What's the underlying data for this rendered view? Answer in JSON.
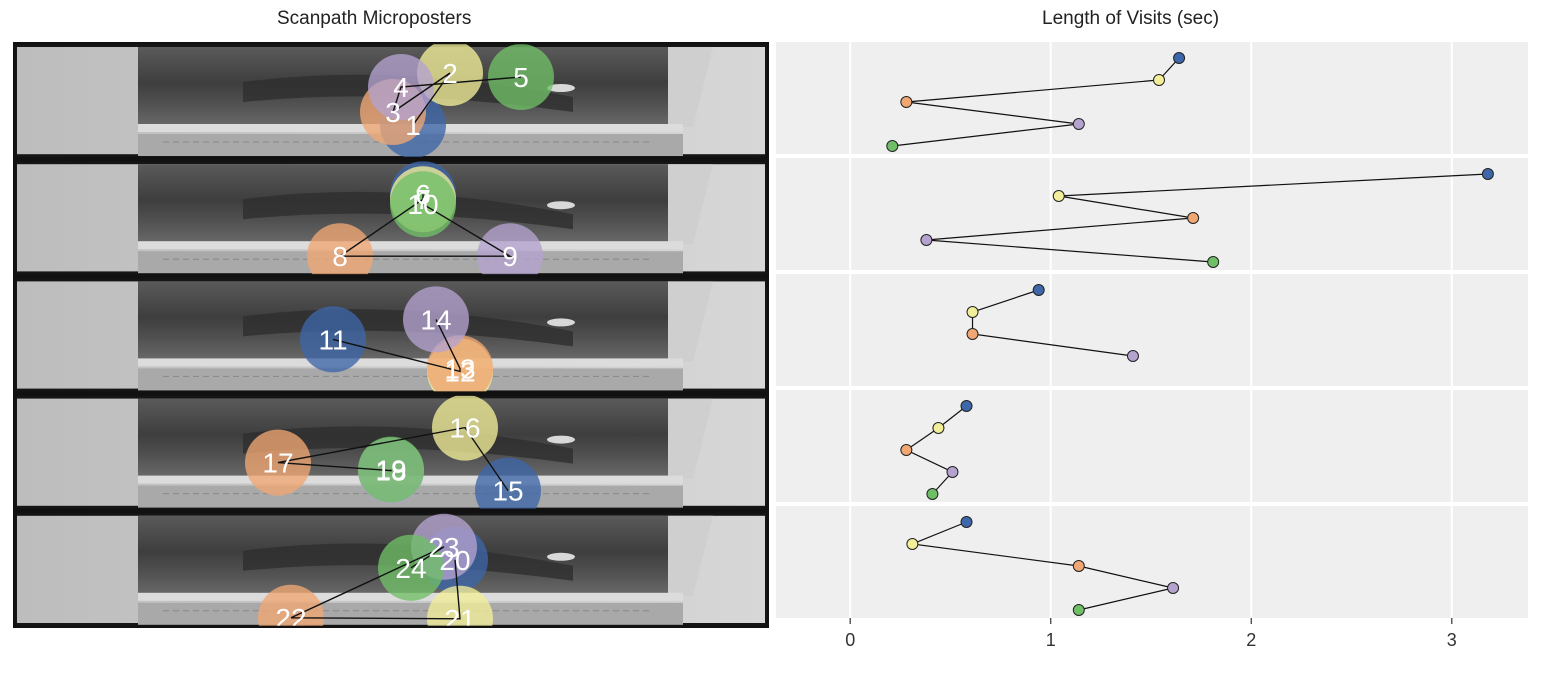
{
  "left_title": "Scanpath Microposters",
  "right_title": "Length of Visits (sec)",
  "colors": {
    "blue": "#3d67a8",
    "yellow": "#f2ee9a",
    "orange": "#f1a773",
    "purple": "#b5a3cf",
    "green": "#6fbf66",
    "panel_bg": "#efefef",
    "grid": "#ffffff"
  },
  "scanpaths": [
    {
      "fixations": [
        {
          "label": "1",
          "color": "blue"
        },
        {
          "label": "2",
          "color": "yellow"
        },
        {
          "label": "3",
          "color": "orange"
        },
        {
          "label": "4",
          "color": "purple"
        },
        {
          "label": "5",
          "color": "green"
        }
      ]
    },
    {
      "fixations": [
        {
          "label": "6",
          "color": "blue"
        },
        {
          "label": "7",
          "color": "yellow"
        },
        {
          "label": "8",
          "color": "orange"
        },
        {
          "label": "9",
          "color": "purple"
        },
        {
          "label": "10",
          "color": "green"
        }
      ]
    },
    {
      "fixations": [
        {
          "label": "11",
          "color": "blue"
        },
        {
          "label": "12",
          "color": "yellow"
        },
        {
          "label": "13",
          "color": "orange"
        },
        {
          "label": "14",
          "color": "purple"
        }
      ]
    },
    {
      "fixations": [
        {
          "label": "15",
          "color": "blue"
        },
        {
          "label": "16",
          "color": "yellow"
        },
        {
          "label": "17",
          "color": "orange"
        },
        {
          "label": "18",
          "color": "purple"
        },
        {
          "label": "19",
          "color": "green"
        }
      ]
    },
    {
      "fixations": [
        {
          "label": "20",
          "color": "blue"
        },
        {
          "label": "21",
          "color": "yellow"
        },
        {
          "label": "22",
          "color": "orange"
        },
        {
          "label": "23",
          "color": "purple"
        },
        {
          "label": "24",
          "color": "green"
        }
      ]
    }
  ],
  "chart_data": {
    "type": "line",
    "title": "Length of Visits (sec)",
    "xlabel": "",
    "ylabel": "",
    "xlim": [
      -0.37,
      3.38
    ],
    "xticks": [
      0,
      1,
      2,
      3
    ],
    "grid": true,
    "series": [
      {
        "values": [
          1.64,
          1.54,
          0.28,
          1.14,
          0.21
        ],
        "colors": [
          "blue",
          "yellow",
          "orange",
          "purple",
          "green"
        ]
      },
      {
        "values": [
          3.18,
          1.04,
          1.71,
          0.38,
          1.81
        ],
        "colors": [
          "blue",
          "yellow",
          "orange",
          "purple",
          "green"
        ]
      },
      {
        "values": [
          0.94,
          0.61,
          0.61,
          1.41
        ],
        "colors": [
          "blue",
          "yellow",
          "orange",
          "purple"
        ]
      },
      {
        "values": [
          0.58,
          0.44,
          0.28,
          0.51,
          0.41
        ],
        "colors": [
          "blue",
          "yellow",
          "orange",
          "purple",
          "green"
        ]
      },
      {
        "values": [
          0.58,
          0.31,
          1.14,
          1.61,
          1.14
        ],
        "colors": [
          "blue",
          "yellow",
          "orange",
          "purple",
          "green"
        ]
      }
    ]
  }
}
